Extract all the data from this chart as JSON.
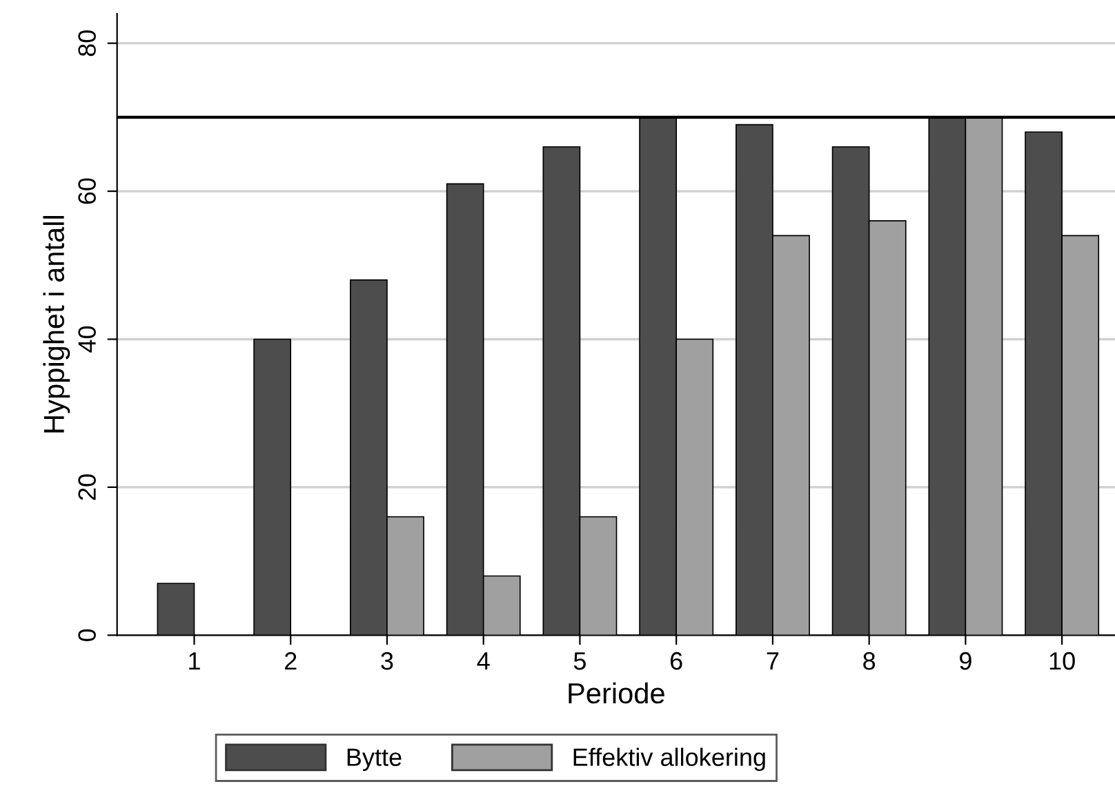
{
  "chart_data": {
    "type": "bar",
    "xlabel": "Periode",
    "ylabel": "Hyppighet i antall",
    "categories": [
      "1",
      "2",
      "3",
      "4",
      "5",
      "6",
      "7",
      "8",
      "9",
      "10"
    ],
    "series": [
      {
        "name": "Bytte",
        "color": "#4d4d4d",
        "values": [
          7,
          40,
          48,
          61,
          66,
          70,
          69,
          66,
          70,
          68
        ]
      },
      {
        "name": "Effektiv allokering",
        "color": "#a0a0a0",
        "values": [
          null,
          null,
          16,
          8,
          16,
          40,
          54,
          56,
          70,
          54
        ]
      }
    ],
    "ylim": [
      0,
      84
    ],
    "yticks": [
      0,
      20,
      40,
      60,
      80
    ],
    "grid": "y",
    "legend": "bottom",
    "ref_lines": [
      {
        "axis": "y",
        "value": 70,
        "color": "#000000"
      }
    ]
  }
}
